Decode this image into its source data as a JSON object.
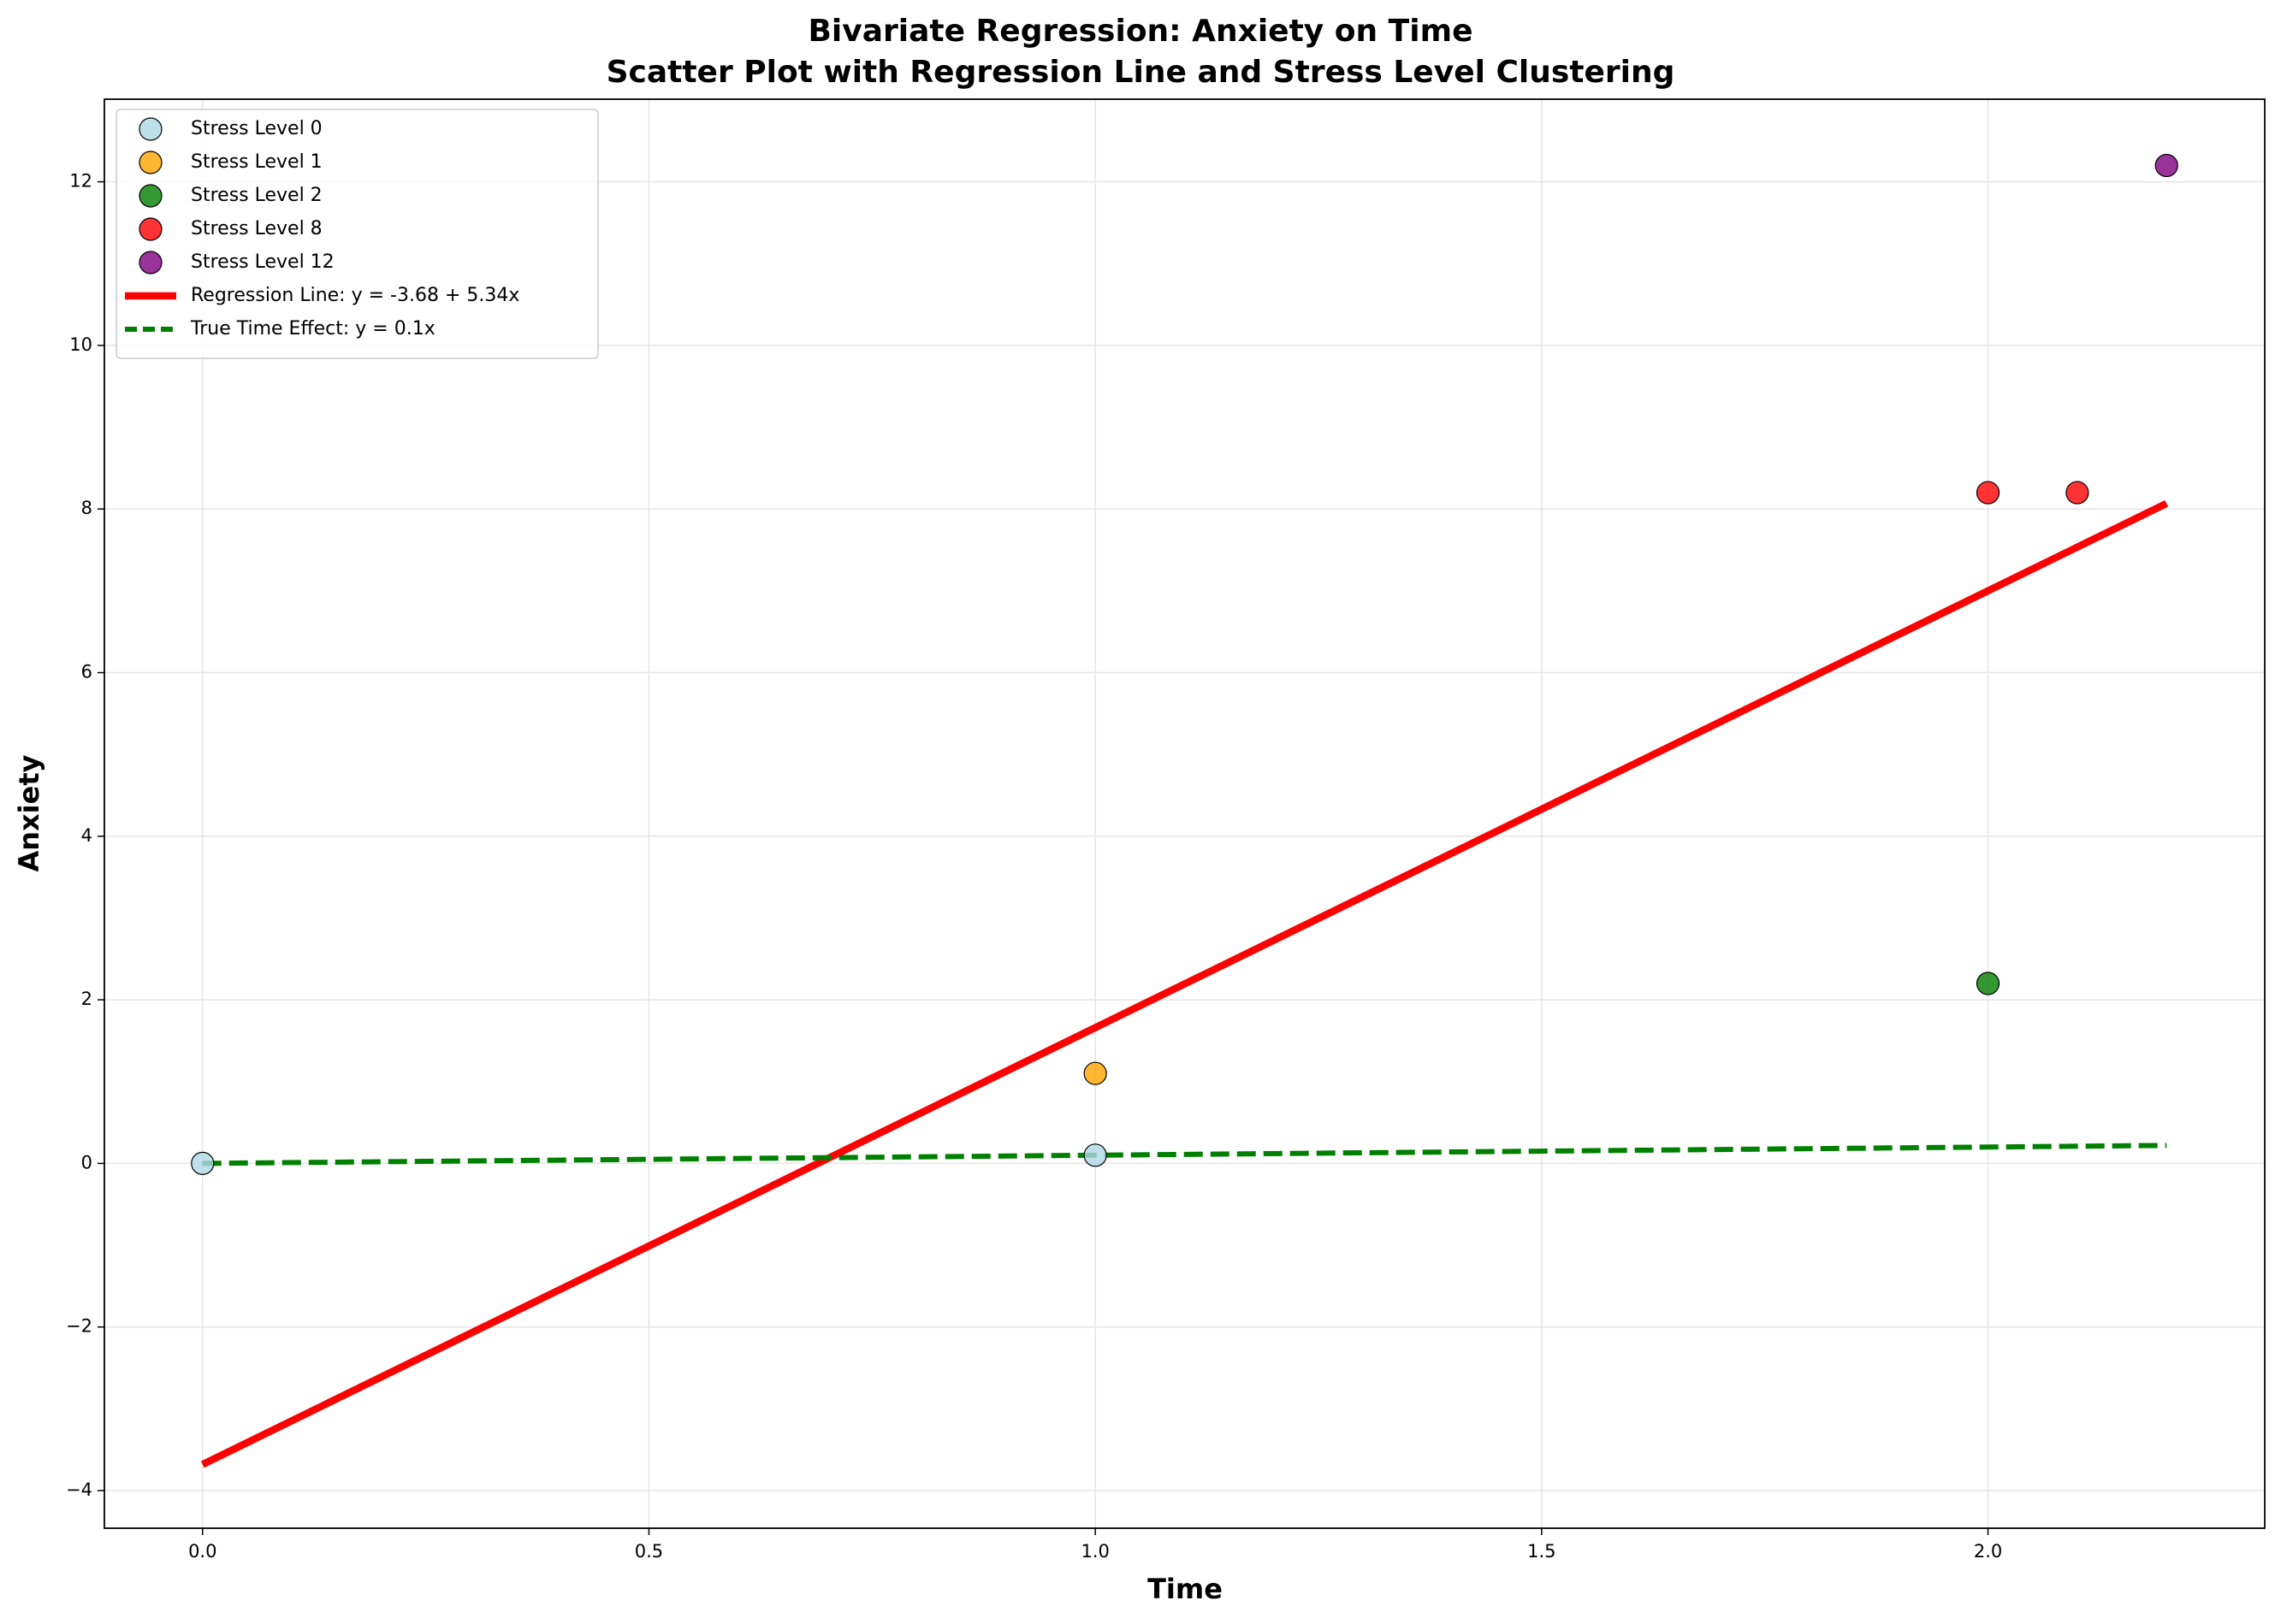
{
  "chart_data": {
    "type": "scatter",
    "title": "Bivariate Regression: Anxiety on Time",
    "subtitle": "Scatter Plot with Regression Line and Stress Level Clustering",
    "xlabel": "Time",
    "ylabel": "Anxiety",
    "xlim": [
      -0.11,
      2.31
    ],
    "ylim": [
      -4.46,
      13.01
    ],
    "xticks": [
      {
        "value": 0,
        "label": "0.0"
      },
      {
        "value": 0.5,
        "label": "0.5"
      },
      {
        "value": 1,
        "label": "1.0"
      },
      {
        "value": 1.5,
        "label": "1.5"
      },
      {
        "value": 2,
        "label": "2.0"
      }
    ],
    "yticks": [
      {
        "value": -4,
        "label": "−4"
      },
      {
        "value": -2,
        "label": "−2"
      },
      0,
      2,
      4,
      6,
      8,
      10,
      12
    ],
    "grid": true,
    "legend": "upper left",
    "series": [
      {
        "name": "Stress Level 0",
        "color": "#add8e6",
        "x": [
          0,
          1
        ],
        "values": [
          0,
          0.1
        ]
      },
      {
        "name": "Stress Level 1",
        "color": "#ffa500",
        "x": [
          1
        ],
        "values": [
          1.1
        ]
      },
      {
        "name": "Stress Level 2",
        "color": "#008000",
        "x": [
          2
        ],
        "values": [
          2.2
        ]
      },
      {
        "name": "Stress Level 8",
        "color": "#ff0000",
        "x": [
          2,
          2.1
        ],
        "values": [
          8.2,
          8.2
        ]
      },
      {
        "name": "Stress Level 12",
        "color": "#800080",
        "x": [
          2.2
        ],
        "values": [
          12.2
        ]
      },
      {
        "name": "Regression Line: y = -3.68 + 5.34x",
        "color": "#ff0000",
        "type": "line",
        "x": [
          0,
          2.2
        ],
        "values": [
          -3.68,
          8.068
        ]
      },
      {
        "name": "True Time Effect: y = 0.1x",
        "color": "#008000",
        "type": "line",
        "style": "dashed",
        "x": [
          0,
          2.2
        ],
        "values": [
          0,
          0.22
        ]
      }
    ]
  }
}
